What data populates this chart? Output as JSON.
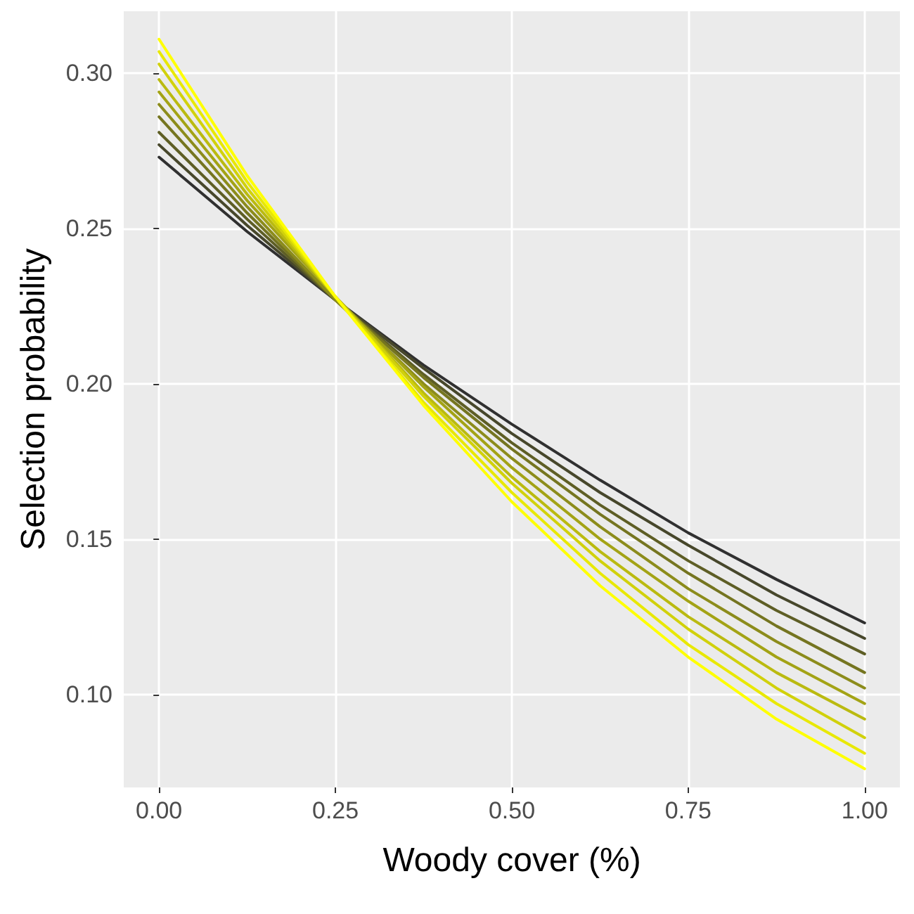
{
  "chart_data": {
    "type": "line",
    "xlabel": "Woody cover (%)",
    "ylabel": "Selection probability",
    "x": [
      0,
      0.125,
      0.25,
      0.375,
      0.5,
      0.625,
      0.75,
      0.875,
      1
    ],
    "series": [
      {
        "color": "#303030",
        "values": [
          0.273,
          0.249,
          0.227,
          0.206,
          0.187,
          0.169,
          0.152,
          0.137,
          0.123
        ]
      },
      {
        "color": "#47472b",
        "values": [
          0.277,
          0.251,
          0.227,
          0.205,
          0.184,
          0.165,
          0.148,
          0.132,
          0.118
        ]
      },
      {
        "color": "#5e5e25",
        "values": [
          0.281,
          0.253,
          0.227,
          0.203,
          0.181,
          0.161,
          0.143,
          0.127,
          0.113
        ]
      },
      {
        "color": "#757520",
        "values": [
          0.286,
          0.255,
          0.227,
          0.202,
          0.179,
          0.158,
          0.139,
          0.122,
          0.107
        ]
      },
      {
        "color": "#8c8c1b",
        "values": [
          0.29,
          0.257,
          0.227,
          0.2,
          0.176,
          0.154,
          0.134,
          0.117,
          0.102
        ]
      },
      {
        "color": "#a3a315",
        "values": [
          0.294,
          0.259,
          0.228,
          0.199,
          0.173,
          0.15,
          0.13,
          0.112,
          0.097
        ]
      },
      {
        "color": "#baba10",
        "values": [
          0.298,
          0.261,
          0.228,
          0.197,
          0.17,
          0.146,
          0.125,
          0.107,
          0.092
        ]
      },
      {
        "color": "#d1d10b",
        "values": [
          0.303,
          0.263,
          0.228,
          0.196,
          0.168,
          0.143,
          0.121,
          0.102,
          0.086
        ]
      },
      {
        "color": "#e8e805",
        "values": [
          0.307,
          0.265,
          0.228,
          0.194,
          0.165,
          0.139,
          0.116,
          0.097,
          0.081
        ]
      },
      {
        "color": "#ffff00",
        "values": [
          0.311,
          0.267,
          0.228,
          0.193,
          0.162,
          0.135,
          0.112,
          0.092,
          0.076
        ]
      }
    ],
    "xlim": [
      -0.05,
      1.05
    ],
    "ylim": [
      0.07,
      0.32
    ],
    "xticks": [
      {
        "value": 0,
        "label": "0.00"
      },
      {
        "value": 0.25,
        "label": "0.25"
      },
      {
        "value": 0.5,
        "label": "0.50"
      },
      {
        "value": 0.75,
        "label": "0.75"
      },
      {
        "value": 1,
        "label": "1.00"
      }
    ],
    "yticks": [
      {
        "value": 0.1,
        "label": "0.10"
      },
      {
        "value": 0.15,
        "label": "0.15"
      },
      {
        "value": 0.2,
        "label": "0.20"
      },
      {
        "value": 0.25,
        "label": "0.25"
      },
      {
        "value": 0.3,
        "label": "0.30"
      }
    ],
    "grid": true,
    "marker": "none",
    "line_style": "solid"
  }
}
